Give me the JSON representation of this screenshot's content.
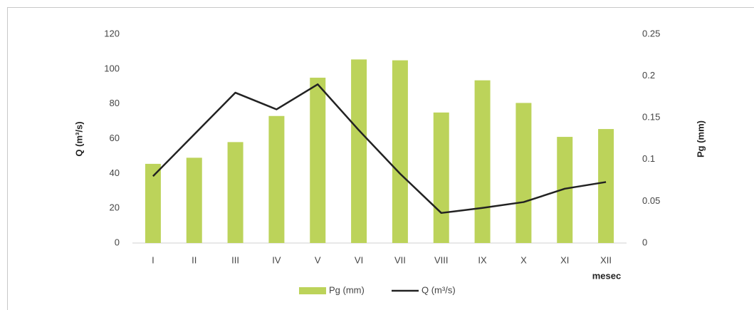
{
  "chart_data": {
    "type": "bar",
    "y_label": "Q (m³/s)",
    "y2_label": "Pg (mm)",
    "x_label": "mesec",
    "categories": [
      "I",
      "II",
      "III",
      "IV",
      "V",
      "VI",
      "VII",
      "VIII",
      "IX",
      "X",
      "XI",
      "XII"
    ],
    "series": [
      {
        "name": "Pg (mm)",
        "type": "bar",
        "color": "#bcd35a",
        "values": [
          45.5,
          49,
          58,
          73,
          95,
          105.5,
          105,
          75,
          93.5,
          80.5,
          61,
          65.5
        ]
      },
      {
        "name": "Q (m³/s)",
        "type": "line",
        "axis": "y2",
        "color": "#222222",
        "values": [
          0.08,
          0.13,
          0.18,
          0.16,
          0.19,
          0.135,
          0.083,
          0.036,
          0.042,
          0.049,
          0.065,
          0.073
        ]
      }
    ],
    "ylim": [
      0,
      120
    ],
    "yticks": [
      0,
      20,
      40,
      60,
      80,
      100,
      120
    ],
    "y2lim": [
      0,
      0.25
    ],
    "y2ticks": [
      0,
      0.05,
      0.1,
      0.15,
      0.2,
      0.25
    ],
    "legend": "bottom"
  }
}
